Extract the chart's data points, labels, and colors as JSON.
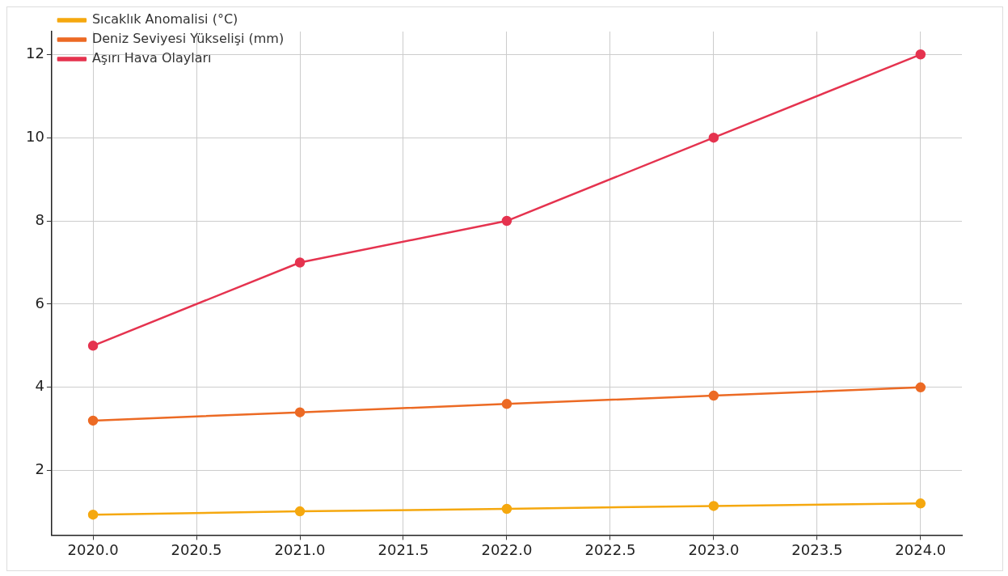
{
  "chart_data": {
    "type": "line",
    "x": [
      2020,
      2021,
      2022,
      2023,
      2024
    ],
    "series": [
      {
        "name": "Sıcaklık Anomalisi (°C)",
        "color": "#f5a80f",
        "values": [
          0.94,
          1.02,
          1.08,
          1.15,
          1.21
        ]
      },
      {
        "name": "Deniz Seviyesi Yükselişi (mm)",
        "color": "#ec6a24",
        "values": [
          3.2,
          3.4,
          3.6,
          3.8,
          4.0
        ]
      },
      {
        "name": "Aşırı Hava Olayları",
        "color": "#e5334f",
        "values": [
          5,
          7,
          8,
          10,
          12
        ]
      }
    ],
    "xlim": [
      2019.8,
      2024.2
    ],
    "xticks": [
      {
        "value": 2020,
        "label": "2020.0"
      },
      {
        "value": 2020.5,
        "label": "2020.5"
      },
      {
        "value": 2021,
        "label": "2021.0"
      },
      {
        "value": 2021.5,
        "label": "2021.5"
      },
      {
        "value": 2022,
        "label": "2022.0"
      },
      {
        "value": 2022.5,
        "label": "2022.5"
      },
      {
        "value": 2023,
        "label": "2023.0"
      },
      {
        "value": 2023.5,
        "label": "2023.5"
      },
      {
        "value": 2024,
        "label": "2024.0"
      }
    ],
    "ylim": [
      0.45,
      12.55
    ],
    "yticks": [
      2,
      4,
      6,
      8,
      10,
      12
    ],
    "grid": true,
    "legend": "top left",
    "marker": "circle",
    "line_style": "solid"
  }
}
